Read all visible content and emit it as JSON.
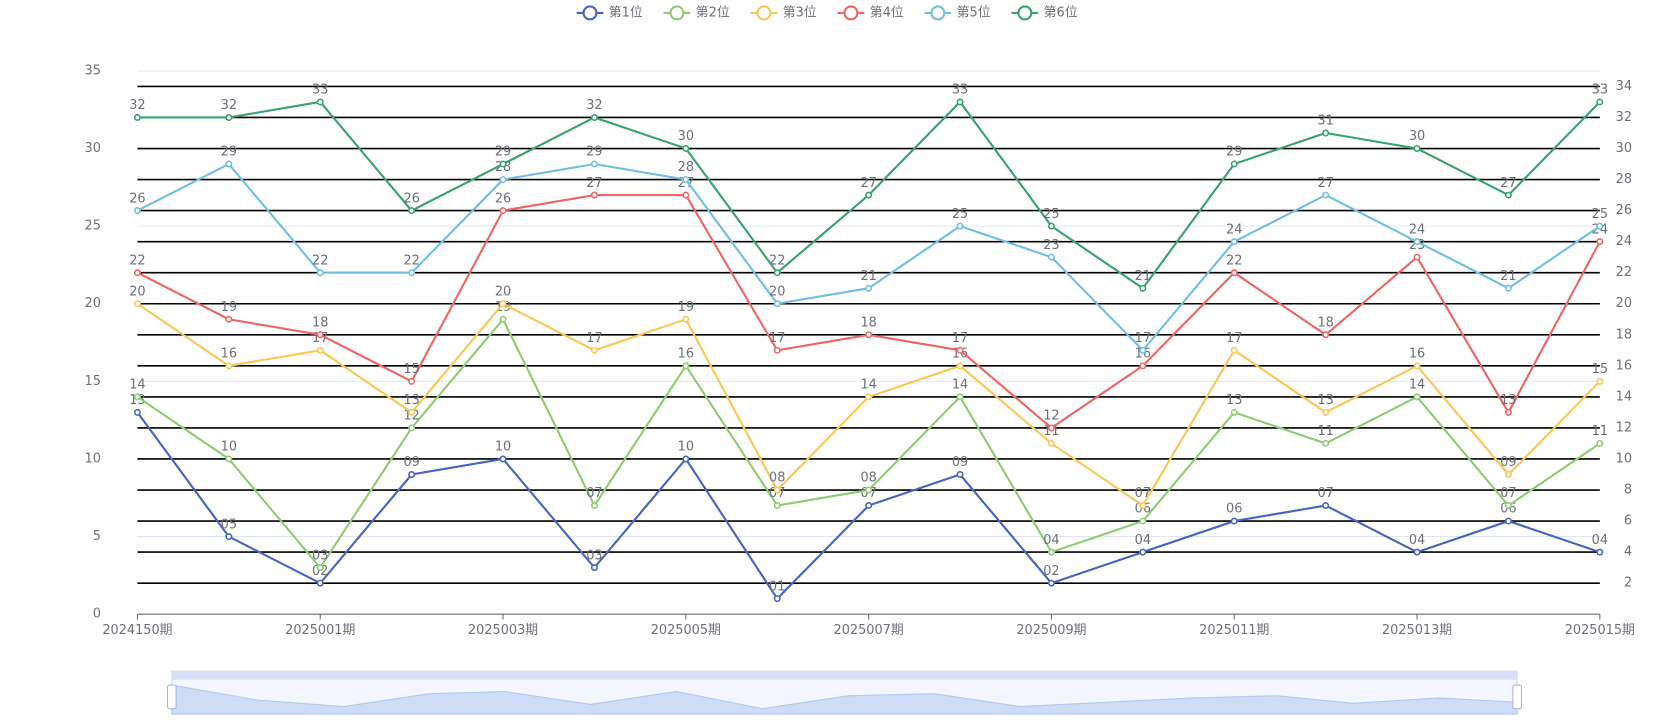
{
  "chart_data": {
    "type": "line",
    "categories": [
      "2024150期",
      null,
      "2025001期",
      null,
      "2025003期",
      null,
      "2025005期",
      null,
      "2025007期",
      null,
      "2025009期",
      null,
      "2025011期",
      null,
      "2025013期",
      null,
      "2025015期"
    ],
    "series": [
      {
        "name": "第1位",
        "color": "#4a64c0",
        "values": [
          13,
          5,
          2,
          9,
          10,
          3,
          10,
          1,
          7,
          9,
          2,
          4,
          6,
          7,
          4,
          6,
          4
        ],
        "value_labels": [
          "13",
          "05",
          "02",
          "09",
          "10",
          "03",
          "10",
          "01",
          "07",
          "09",
          "02",
          "04",
          "06",
          "07",
          "04",
          "06",
          "04"
        ]
      },
      {
        "name": "第2位",
        "color": "#91cc75",
        "values": [
          14,
          10,
          3,
          12,
          19,
          7,
          16,
          7,
          8,
          14,
          4,
          6,
          13,
          11,
          14,
          7,
          11
        ],
        "value_labels": [
          "14",
          "10",
          "03",
          "12",
          "19",
          "07",
          "16",
          "07",
          "08",
          "14",
          "04",
          "06",
          "13",
          "11",
          "14",
          "07",
          "11"
        ]
      },
      {
        "name": "第3位",
        "color": "#fac858",
        "values": [
          20,
          16,
          17,
          13,
          20,
          17,
          19,
          8,
          14,
          16,
          11,
          7,
          17,
          13,
          16,
          9,
          15
        ],
        "value_labels": [
          "20",
          "16",
          "17",
          "13",
          "20",
          "17",
          "19",
          "08",
          "14",
          "16",
          "11",
          "07",
          "17",
          "13",
          "16",
          "09",
          "15"
        ]
      },
      {
        "name": "第4位",
        "color": "#ee6666",
        "values": [
          22,
          19,
          18,
          15,
          26,
          27,
          27,
          17,
          18,
          17,
          12,
          16,
          22,
          18,
          23,
          13,
          24
        ],
        "value_labels": [
          "22",
          "19",
          "18",
          "15",
          "26",
          "27",
          "27",
          "17",
          "18",
          "17",
          "12",
          "16",
          "22",
          "18",
          "23",
          "13",
          "24"
        ]
      },
      {
        "name": "第5位",
        "color": "#73c0de",
        "values": [
          26,
          29,
          22,
          22,
          28,
          29,
          28,
          20,
          21,
          25,
          23,
          17,
          24,
          27,
          24,
          21,
          25
        ],
        "value_labels": [
          "26",
          "29",
          "22",
          "22",
          "28",
          "29",
          "28",
          "20",
          "21",
          "25",
          "23",
          "17",
          "24",
          "27",
          "24",
          "21",
          "25"
        ]
      },
      {
        "name": "第6位",
        "color": "#3ba272",
        "values": [
          32,
          32,
          33,
          26,
          29,
          32,
          30,
          22,
          27,
          33,
          25,
          21,
          29,
          31,
          30,
          27,
          33
        ],
        "value_labels": [
          "32",
          "32",
          "33",
          "26",
          "29",
          "32",
          "30",
          "22",
          "27",
          "33",
          "25",
          "21",
          "29",
          "31",
          "30",
          "27",
          "33"
        ]
      }
    ],
    "ylim": [
      0,
      35
    ],
    "yticks": [
      0,
      5,
      10,
      15,
      20,
      25,
      30,
      35
    ],
    "y2lim": [
      0,
      35
    ],
    "y2ticks": [
      2,
      4,
      6,
      8,
      10,
      12,
      14,
      16,
      18,
      20,
      22,
      24,
      26,
      28,
      30,
      32,
      34
    ],
    "grid": true,
    "legend": "top"
  }
}
